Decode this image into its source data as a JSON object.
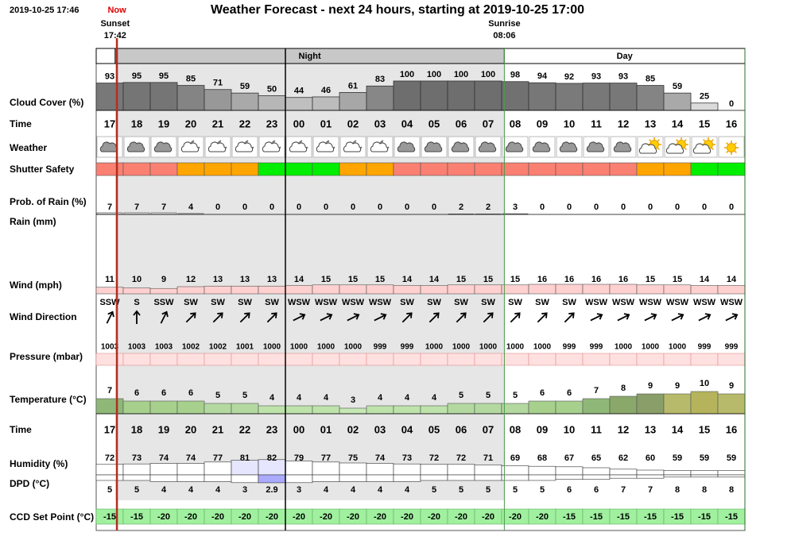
{
  "header": {
    "timestamp": "2019-10-25 17:46",
    "now": "Now",
    "title": "Weather Forecast - next 24 hours, starting at 2019-10-25 17:00",
    "sunset": {
      "label": "Sunset",
      "time": "17:42"
    },
    "sunrise": {
      "label": "Sunrise",
      "time": "08:06"
    },
    "night": "Night",
    "day": "Day"
  },
  "labels": {
    "cloud": "Cloud Cover (%)",
    "time": "Time",
    "weather": "Weather",
    "shutter": "Shutter Safety",
    "rain_prob": "Prob. of Rain (%)",
    "rain": "Rain (mm)",
    "wind": "Wind (mph)",
    "wind_dir": "Wind Direction",
    "pressure": "Pressure (mbar)",
    "temperature": "Temperature (°C)",
    "humidity": "Humidity (%)",
    "dpd": "DPD (°C)",
    "ccd": "CCD Set Point (°C)"
  },
  "hours": [
    "17",
    "18",
    "19",
    "20",
    "21",
    "22",
    "23",
    "00",
    "01",
    "02",
    "03",
    "04",
    "05",
    "06",
    "07",
    "08",
    "09",
    "10",
    "11",
    "12",
    "13",
    "14",
    "15",
    "16"
  ],
  "cloud_cover": [
    93,
    95,
    95,
    85,
    71,
    59,
    50,
    44,
    46,
    61,
    83,
    100,
    100,
    100,
    100,
    98,
    94,
    92,
    93,
    93,
    85,
    59,
    25,
    0
  ],
  "weather_icons": [
    "cloud",
    "cloud",
    "cloud",
    "moon-cloud",
    "moon-cloud",
    "moon-cloud",
    "moon-cloud",
    "moon-cloud",
    "moon-cloud",
    "moon-cloud",
    "moon-cloud",
    "cloud",
    "cloud",
    "cloud",
    "cloud",
    "cloud",
    "cloud",
    "cloud",
    "cloud",
    "cloud",
    "sun-cloud",
    "sun-cloud",
    "sun-cloud",
    "sun"
  ],
  "shutter_colors": [
    "#fa8072",
    "#fa8072",
    "#fa8072",
    "#ffa500",
    "#ffa500",
    "#ffa500",
    "#00ee00",
    "#00ee00",
    "#00ee00",
    "#ffa500",
    "#ffa500",
    "#fa8072",
    "#fa8072",
    "#fa8072",
    "#fa8072",
    "#fa8072",
    "#fa8072",
    "#fa8072",
    "#fa8072",
    "#fa8072",
    "#ffa500",
    "#ffa500",
    "#00ee00",
    "#00ee00"
  ],
  "rain_prob": [
    7,
    7,
    7,
    4,
    0,
    0,
    0,
    0,
    0,
    0,
    0,
    0,
    0,
    2,
    2,
    3,
    0,
    0,
    0,
    0,
    0,
    0,
    0,
    0
  ],
  "wind": [
    11,
    10,
    9,
    12,
    13,
    13,
    13,
    14,
    15,
    15,
    15,
    14,
    14,
    15,
    15,
    15,
    16,
    16,
    16,
    16,
    15,
    15,
    14,
    14
  ],
  "wind_dir": [
    "SSW",
    "S",
    "SSW",
    "SW",
    "SW",
    "SW",
    "SW",
    "WSW",
    "WSW",
    "WSW",
    "WSW",
    "SW",
    "SW",
    "SW",
    "SW",
    "SW",
    "SW",
    "SW",
    "WSW",
    "WSW",
    "WSW",
    "WSW",
    "WSW",
    "WSW"
  ],
  "pressure": [
    1003,
    1003,
    1003,
    1002,
    1002,
    1001,
    1000,
    1000,
    1000,
    1000,
    999,
    999,
    1000,
    1000,
    1000,
    1000,
    1000,
    999,
    999,
    1000,
    1000,
    1000,
    999,
    999
  ],
  "temperature": [
    7,
    6,
    6,
    6,
    5,
    5,
    4,
    4,
    4,
    3,
    4,
    4,
    4,
    5,
    5,
    5,
    6,
    6,
    7,
    8,
    9,
    9,
    10,
    9
  ],
  "temperature_colors": [
    "#8fb878",
    "#a6d08c",
    "#a6d08c",
    "#a6d08c",
    "#b3d9a0",
    "#b3d9a0",
    "#bde3ab",
    "#bde3ab",
    "#bde3ab",
    "#c5e8b5",
    "#bde3ab",
    "#bde3ab",
    "#bde3ab",
    "#b3d9a0",
    "#b3d9a0",
    "#b3d9a0",
    "#a6d08c",
    "#a6d08c",
    "#8fb878",
    "#8aa86a",
    "#8a9e6a",
    "#b7ba6a",
    "#b5b45c",
    "#b7ba6a"
  ],
  "humidity": [
    72,
    73,
    74,
    74,
    77,
    81,
    82,
    79,
    77,
    75,
    74,
    73,
    72,
    72,
    71,
    69,
    68,
    67,
    65,
    62,
    60,
    59,
    59,
    59
  ],
  "dpd": [
    5,
    5,
    4,
    4,
    4,
    3,
    2.9,
    3,
    4,
    4,
    4,
    4,
    5,
    5,
    5,
    5,
    5,
    6,
    6,
    7,
    7,
    8,
    8,
    8
  ],
  "ccd": [
    -15,
    -15,
    -20,
    -20,
    -20,
    -20,
    -20,
    -20,
    -20,
    -20,
    -20,
    -20,
    -20,
    -20,
    -20,
    -20,
    -20,
    -15,
    -15,
    -15,
    -15,
    -15,
    -15,
    -15
  ]
}
